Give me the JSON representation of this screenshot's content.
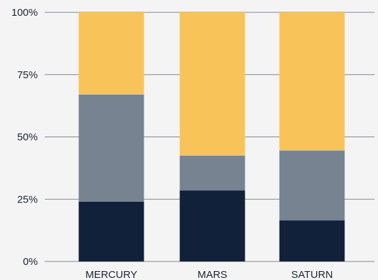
{
  "chart_data": {
    "type": "bar",
    "stacked": true,
    "categories": [
      "MERCURY",
      "MARS",
      "SATURN"
    ],
    "series": [
      {
        "values": [
          24,
          28.5,
          16.5
        ],
        "color": "#11213a"
      },
      {
        "values": [
          43,
          14,
          28
        ],
        "color": "#778390"
      },
      {
        "values": [
          33,
          57.5,
          55.5
        ],
        "color": "#f8c45a"
      }
    ],
    "yticks": [
      "0%",
      "25%",
      "50%",
      "75%",
      "100%"
    ],
    "ylim": [
      0,
      100
    ],
    "grid": true,
    "legend": "none"
  }
}
